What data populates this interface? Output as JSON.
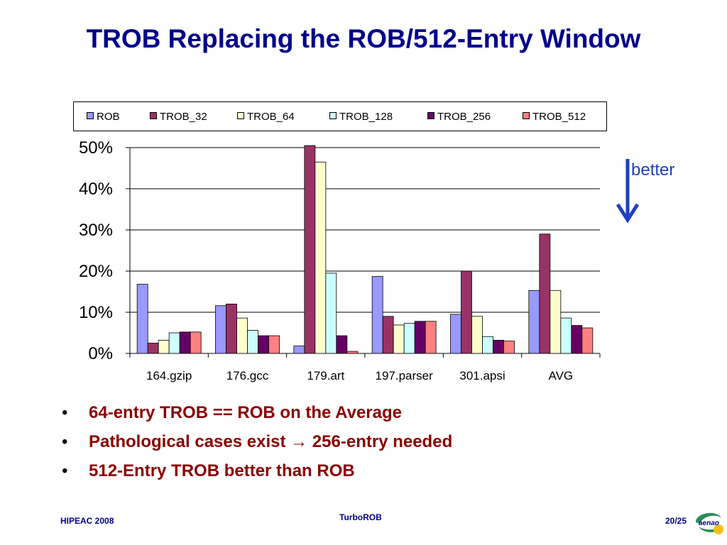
{
  "slide": {
    "title": "TROB Replacing the ROB/512-Entry Window",
    "annotation": "better",
    "annotation_arrow_color": "#1f3fbf",
    "bullets": [
      {
        "text_before": "64-entry TROB == ROB on the Average"
      },
      {
        "text_before": "Pathological cases exist ",
        "arrow": "→",
        "text_after": " 256-entry needed"
      },
      {
        "text_before": "512-Entry TROB better than ROB"
      }
    ],
    "footer": {
      "left": "HIPEAC 2008",
      "center": "TurboROB",
      "page": "20/25",
      "logo_text": "aenao"
    },
    "colors": {
      "title": "#00008b",
      "bullet_text": "#8b0000"
    }
  },
  "chart_data": {
    "type": "bar",
    "categories": [
      "164.gzip",
      "176.gcc",
      "179.art",
      "197.parser",
      "301.apsi",
      "AVG"
    ],
    "series": [
      {
        "name": "ROB",
        "color": "#9999ff",
        "values": [
          16.8,
          11.6,
          1.8,
          18.7,
          9.5,
          15.3
        ]
      },
      {
        "name": "TROB_32",
        "color": "#993366",
        "values": [
          2.5,
          12.0,
          50.5,
          9.0,
          20.0,
          29.0
        ]
      },
      {
        "name": "TROB_64",
        "color": "#ffffcc",
        "values": [
          3.2,
          8.6,
          46.5,
          6.9,
          9.0,
          15.3
        ]
      },
      {
        "name": "TROB_128",
        "color": "#ccffff",
        "values": [
          5.0,
          5.6,
          19.5,
          7.3,
          4.1,
          8.6
        ]
      },
      {
        "name": "TROB_256",
        "color": "#660066",
        "values": [
          5.2,
          4.3,
          4.3,
          7.8,
          3.2,
          6.8
        ]
      },
      {
        "name": "TROB_512",
        "color": "#ff8080",
        "values": [
          5.2,
          4.3,
          0.5,
          7.8,
          3.0,
          6.2
        ]
      }
    ],
    "yticks": [
      "0%",
      "10%",
      "20%",
      "30%",
      "40%",
      "50%"
    ],
    "ylim": [
      0,
      50
    ],
    "grid": true,
    "legend_position": "top"
  }
}
